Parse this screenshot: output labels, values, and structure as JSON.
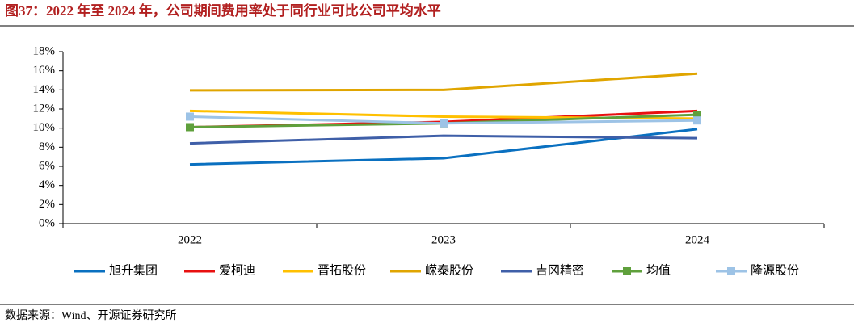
{
  "title": "图37：2022 年至 2024 年，公司期间费用率处于同行业可比公司平均水平",
  "source": "数据来源：Wind、开源证券研究所",
  "chart_data": {
    "type": "line",
    "categories": [
      "2022",
      "2023",
      "2024"
    ],
    "ylim": [
      0,
      18
    ],
    "yticks": [
      {
        "value": 0,
        "label": "0%"
      },
      {
        "value": 2,
        "label": "2%"
      },
      {
        "value": 4,
        "label": "4%"
      },
      {
        "value": 6,
        "label": "6%"
      },
      {
        "value": 8,
        "label": "8%"
      },
      {
        "value": 10,
        "label": "10%"
      },
      {
        "value": 12,
        "label": "12%"
      },
      {
        "value": 14,
        "label": "14%"
      },
      {
        "value": 16,
        "label": "16%"
      },
      {
        "value": 18,
        "label": "18%"
      }
    ],
    "legend": "bottom",
    "series": [
      {
        "name": "旭升集团",
        "color": "#0a70c0",
        "values": [
          6.2,
          6.85,
          9.9
        ]
      },
      {
        "name": "爱柯迪",
        "color": "#e81010",
        "values": [
          10.1,
          10.65,
          11.8
        ]
      },
      {
        "name": "晋拓股份",
        "color": "#ffc000",
        "values": [
          11.8,
          11.2,
          11.0
        ]
      },
      {
        "name": "嵘泰股份",
        "color": "#e0a500",
        "values": [
          13.95,
          14.0,
          15.7
        ]
      },
      {
        "name": "吉冈精密",
        "color": "#3f5fa8",
        "values": [
          8.4,
          9.2,
          8.95
        ]
      },
      {
        "name": "均值",
        "color": "#5fa03c",
        "marker": "square",
        "values": [
          10.1,
          10.5,
          11.4
        ]
      },
      {
        "name": "隆源股份",
        "color": "#9dc3e6",
        "marker": "square",
        "values": [
          11.2,
          10.5,
          10.8
        ]
      }
    ]
  }
}
